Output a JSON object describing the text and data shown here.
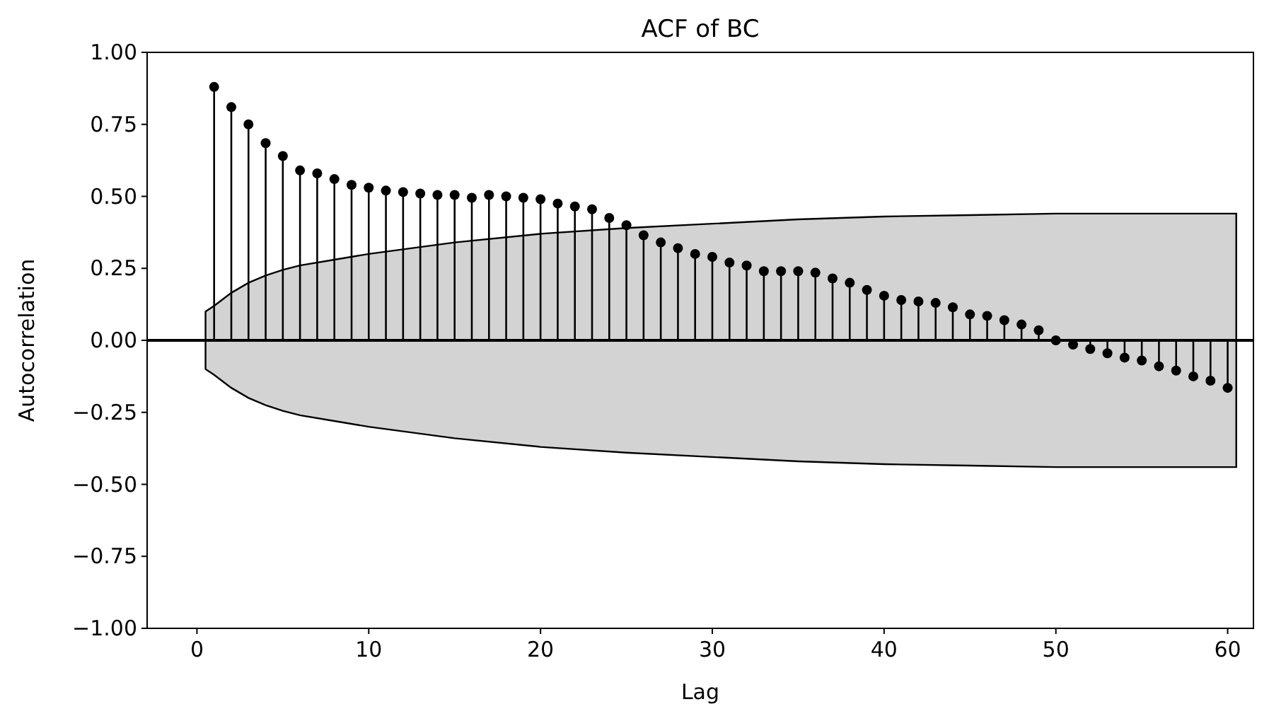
{
  "chart_data": {
    "type": "lollipop",
    "title": "ACF of BC",
    "xlabel": "Lag",
    "ylabel": "Autocorrelation",
    "xlim": [
      -2.9,
      61.5
    ],
    "xticks": [
      0,
      10,
      20,
      30,
      40,
      50,
      60
    ],
    "ylim": [
      -1,
      1
    ],
    "yticks": [
      {
        "value": -1,
        "label": "−1.00"
      },
      {
        "value": -0.75,
        "label": "−0.75"
      },
      {
        "value": -0.5,
        "label": "−0.50"
      },
      {
        "value": -0.25,
        "label": "−0.25"
      },
      {
        "value": 0,
        "label": "0.00"
      },
      {
        "value": 0.25,
        "label": "0.25"
      },
      {
        "value": 0.5,
        "label": "0.50"
      },
      {
        "value": 0.75,
        "label": "0.75"
      },
      {
        "value": 1,
        "label": "1.00"
      }
    ],
    "grid": false,
    "marker": "circle",
    "ref_lines": [
      {
        "axis": "y",
        "value": 0,
        "color": "#000000"
      }
    ],
    "series": [
      {
        "type": "area",
        "color": "#d3d3d3",
        "x": [
          0.5,
          1,
          2,
          3,
          4,
          5,
          6,
          8,
          10,
          15,
          20,
          25,
          30,
          35,
          40,
          45,
          50,
          55,
          60.5
        ],
        "values": [
          null,
          null,
          null,
          null,
          null,
          null,
          null,
          null,
          null,
          null,
          null,
          null,
          null,
          null,
          null,
          null,
          null,
          null,
          null
        ],
        "upper": [
          0.1,
          0.12,
          0.165,
          0.2,
          0.225,
          0.245,
          0.26,
          0.28,
          0.3,
          0.34,
          0.37,
          0.39,
          0.405,
          0.42,
          0.43,
          0.435,
          0.44,
          0.44,
          0.44
        ],
        "lower": [
          -0.1,
          -0.12,
          -0.165,
          -0.2,
          -0.225,
          -0.245,
          -0.26,
          -0.28,
          -0.3,
          -0.34,
          -0.37,
          -0.39,
          -0.405,
          -0.42,
          -0.43,
          -0.435,
          -0.44,
          -0.44,
          -0.44
        ]
      },
      {
        "color": "#000000",
        "x": [
          1,
          2,
          3,
          4,
          5,
          6,
          7,
          8,
          9,
          10,
          11,
          12,
          13,
          14,
          15,
          16,
          17,
          18,
          19,
          20,
          21,
          22,
          23,
          24,
          25,
          26,
          27,
          28,
          29,
          30,
          31,
          32,
          33,
          34,
          35,
          36,
          37,
          38,
          39,
          40,
          41,
          42,
          43,
          44,
          45,
          46,
          47,
          48,
          49,
          50,
          51,
          52,
          53,
          54,
          55,
          56,
          57,
          58,
          59,
          60
        ],
        "values": [
          0.88,
          0.81,
          0.75,
          0.685,
          0.64,
          0.59,
          0.58,
          0.56,
          0.54,
          0.53,
          0.52,
          0.515,
          0.51,
          0.505,
          0.505,
          0.495,
          0.505,
          0.5,
          0.495,
          0.49,
          0.475,
          0.465,
          0.455,
          0.425,
          0.4,
          0.365,
          0.34,
          0.32,
          0.3,
          0.29,
          0.27,
          0.26,
          0.24,
          0.24,
          0.24,
          0.235,
          0.215,
          0.2,
          0.175,
          0.155,
          0.14,
          0.135,
          0.13,
          0.115,
          0.09,
          0.085,
          0.07,
          0.055,
          0.035,
          0.0,
          -0.015,
          -0.03,
          -0.045,
          -0.06,
          -0.07,
          -0.09,
          -0.105,
          -0.125,
          -0.14,
          -0.165
        ]
      }
    ]
  }
}
